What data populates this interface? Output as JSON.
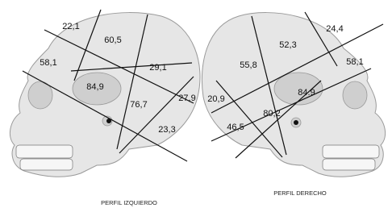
{
  "left_profile": {
    "caption": "PERFIL IZQUIERDO",
    "regions": [
      "22,1",
      "60,5",
      "58,1",
      "29,1",
      "84,9",
      "76,7",
      "27,9",
      "23,3"
    ]
  },
  "right_profile": {
    "caption": "PERFIL DERECHO",
    "regions": [
      "24,4",
      "52,3",
      "55,8",
      "58,1",
      "84.9",
      "20,9",
      "80,2",
      "46,5"
    ]
  }
}
